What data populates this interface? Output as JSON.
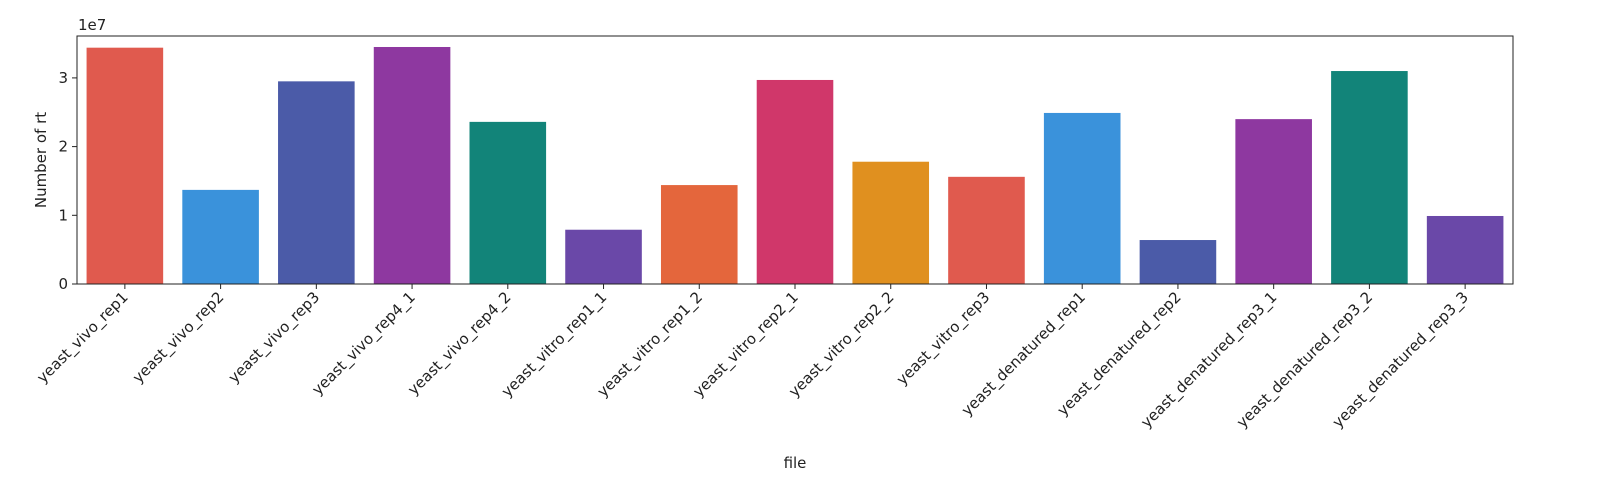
{
  "chart_data": {
    "type": "bar",
    "x_label": "file",
    "y_label": "Number of rt",
    "y_offset_text": "1e7",
    "categories": [
      "yeast_vivo_rep1",
      "yeast_vivo_rep2",
      "yeast_vivo_rep3",
      "yeast_vivo_rep4_1",
      "yeast_vivo_rep4_2",
      "yeast_vitro_rep1_1",
      "yeast_vitro_rep1_2",
      "yeast_vitro_rep2_1",
      "yeast_vitro_rep2_2",
      "yeast_vitro_rep3",
      "yeast_denatured_rep1",
      "yeast_denatured_rep2",
      "yeast_denatured_rep3_1",
      "yeast_denatured_rep3_2",
      "yeast_denatured_rep3_3"
    ],
    "values": [
      3.44,
      1.37,
      2.95,
      3.45,
      2.36,
      0.79,
      1.44,
      2.97,
      1.78,
      1.56,
      2.49,
      0.64,
      2.4,
      3.1,
      0.99
    ],
    "colors": [
      "#e05a4e",
      "#3a92db",
      "#4b5ba8",
      "#8e38a0",
      "#128479",
      "#6a48a8",
      "#e4663c",
      "#d0376a",
      "#e0901f",
      "#e05a4e",
      "#3a92db",
      "#4b5ba8",
      "#8e38a0",
      "#128479",
      "#6a48a8"
    ],
    "ylim": [
      0,
      3.61
    ],
    "yticks": [
      0,
      1,
      2,
      3
    ],
    "grid": false
  }
}
